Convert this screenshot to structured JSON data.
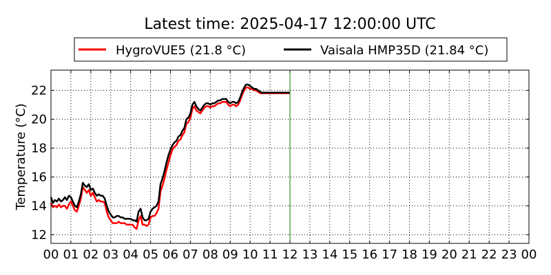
{
  "chart_data": {
    "type": "line",
    "title": "Latest time: 2025-04-17 12:00:00 UTC",
    "xlabel": "",
    "ylabel": "Temperature (°C)",
    "xlim": [
      0,
      24
    ],
    "ylim": [
      11.4,
      23.4
    ],
    "x_ticks": [
      0,
      1,
      2,
      3,
      4,
      5,
      6,
      7,
      8,
      9,
      10,
      11,
      12,
      13,
      14,
      15,
      16,
      17,
      18,
      19,
      20,
      21,
      22,
      23,
      24
    ],
    "x_tick_labels": [
      "00",
      "01",
      "02",
      "03",
      "04",
      "05",
      "06",
      "07",
      "08",
      "09",
      "10",
      "11",
      "12",
      "13",
      "14",
      "15",
      "16",
      "17",
      "18",
      "19",
      "20",
      "21",
      "22",
      "23",
      "00"
    ],
    "y_ticks": [
      12,
      14,
      16,
      18,
      20,
      22
    ],
    "y_tick_labels": [
      "12",
      "14",
      "16",
      "18",
      "20",
      "22"
    ],
    "grid": true,
    "legend_position": "top",
    "current_time_marker": 12,
    "x": [
      0.0,
      0.1,
      0.2,
      0.3,
      0.4,
      0.5,
      0.6,
      0.7,
      0.8,
      0.9,
      1.0,
      1.1,
      1.2,
      1.3,
      1.4,
      1.5,
      1.6,
      1.7,
      1.8,
      1.9,
      2.0,
      2.1,
      2.2,
      2.3,
      2.4,
      2.5,
      2.6,
      2.7,
      2.8,
      2.9,
      3.0,
      3.1,
      3.2,
      3.3,
      3.4,
      3.5,
      3.6,
      3.7,
      3.8,
      3.9,
      4.0,
      4.1,
      4.2,
      4.3,
      4.4,
      4.5,
      4.6,
      4.7,
      4.8,
      4.9,
      5.0,
      5.1,
      5.2,
      5.3,
      5.4,
      5.5,
      5.6,
      5.7,
      5.8,
      5.9,
      6.0,
      6.1,
      6.2,
      6.3,
      6.4,
      6.5,
      6.6,
      6.7,
      6.8,
      6.9,
      7.0,
      7.1,
      7.2,
      7.3,
      7.4,
      7.5,
      7.6,
      7.7,
      7.8,
      7.9,
      8.0,
      8.1,
      8.2,
      8.3,
      8.4,
      8.5,
      8.6,
      8.7,
      8.8,
      8.9,
      9.0,
      9.1,
      9.2,
      9.3,
      9.4,
      9.5,
      9.6,
      9.7,
      9.8,
      9.9,
      10.0,
      10.1,
      10.2,
      10.3,
      10.4,
      10.5,
      10.6,
      10.7,
      10.8,
      10.9,
      11.0,
      11.1,
      11.2,
      11.3,
      11.4,
      11.5,
      11.6,
      11.7,
      11.8,
      11.9,
      12.0
    ],
    "series": [
      {
        "name": "HygroVUE5 (21.8 °C)",
        "color": "#ff0000",
        "values": [
          14.2,
          13.9,
          14.0,
          13.9,
          14.1,
          13.9,
          14.0,
          14.0,
          13.8,
          14.1,
          14.3,
          14.0,
          13.7,
          13.6,
          14.0,
          14.5,
          15.3,
          15.1,
          14.9,
          15.1,
          14.7,
          14.9,
          14.6,
          14.3,
          14.4,
          14.3,
          14.3,
          14.2,
          13.6,
          13.2,
          13.0,
          12.8,
          12.8,
          12.8,
          12.9,
          12.8,
          12.8,
          12.8,
          12.7,
          12.7,
          12.7,
          12.7,
          12.5,
          12.4,
          13.0,
          13.3,
          12.7,
          12.7,
          12.6,
          12.7,
          13.2,
          13.3,
          13.3,
          13.5,
          13.8,
          15.0,
          15.4,
          15.9,
          16.5,
          17.0,
          17.5,
          17.9,
          18.1,
          18.2,
          18.5,
          18.6,
          18.9,
          19.1,
          19.7,
          19.8,
          20.1,
          20.7,
          20.9,
          20.6,
          20.5,
          20.4,
          20.6,
          20.8,
          20.9,
          20.9,
          20.8,
          20.9,
          20.9,
          21.0,
          21.1,
          21.1,
          21.2,
          21.2,
          21.2,
          21.0,
          20.9,
          21.0,
          21.0,
          20.9,
          21.0,
          21.3,
          21.7,
          22.0,
          22.2,
          22.2,
          22.1,
          22.1,
          22.0,
          22.0,
          21.9,
          21.8,
          21.8,
          21.8,
          21.8,
          21.8,
          21.8,
          21.8,
          21.8,
          21.8,
          21.8,
          21.8,
          21.8,
          21.8,
          21.8,
          21.8,
          21.8
        ]
      },
      {
        "name": "Vaisala HMP35D (21.84 °C)",
        "color": "#000000",
        "values": [
          14.6,
          14.2,
          14.4,
          14.3,
          14.5,
          14.3,
          14.4,
          14.6,
          14.4,
          14.7,
          14.6,
          14.3,
          14.0,
          13.9,
          14.3,
          14.8,
          15.6,
          15.4,
          15.3,
          15.5,
          15.1,
          15.2,
          14.9,
          14.7,
          14.8,
          14.7,
          14.7,
          14.5,
          14.0,
          13.6,
          13.4,
          13.2,
          13.2,
          13.3,
          13.3,
          13.2,
          13.2,
          13.1,
          13.1,
          13.1,
          13.1,
          13.0,
          13.0,
          12.9,
          13.6,
          13.8,
          13.2,
          13.0,
          13.0,
          13.1,
          13.6,
          13.8,
          13.9,
          14.0,
          14.3,
          15.5,
          15.9,
          16.4,
          17.0,
          17.5,
          17.9,
          18.2,
          18.4,
          18.5,
          18.8,
          18.9,
          19.2,
          19.4,
          20.0,
          20.1,
          20.4,
          21.0,
          21.2,
          20.9,
          20.7,
          20.6,
          20.8,
          21.0,
          21.1,
          21.1,
          21.0,
          21.1,
          21.1,
          21.2,
          21.3,
          21.3,
          21.4,
          21.4,
          21.4,
          21.2,
          21.1,
          21.2,
          21.2,
          21.1,
          21.2,
          21.5,
          21.9,
          22.2,
          22.4,
          22.4,
          22.3,
          22.2,
          22.1,
          22.1,
          22.0,
          21.9,
          21.84,
          21.84,
          21.84,
          21.84,
          21.84,
          21.84,
          21.84,
          21.84,
          21.84,
          21.84,
          21.84,
          21.84,
          21.84,
          21.84,
          21.84
        ]
      }
    ]
  }
}
